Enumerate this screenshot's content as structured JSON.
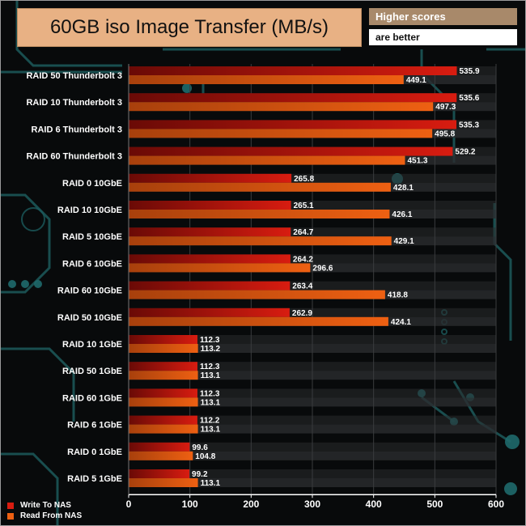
{
  "title": "60GB iso Image Transfer (MB/s)",
  "note": {
    "line1": "Higher scores",
    "line2": "are better"
  },
  "colors": {
    "write": "#d81c10",
    "read": "#ee6012",
    "track": "#2a2c2e"
  },
  "chart_data": {
    "type": "bar",
    "orientation": "horizontal",
    "title": "60GB iso Image Transfer (MB/s)",
    "xlim": [
      0,
      600
    ],
    "xticks": [
      0,
      100,
      200,
      300,
      400,
      500,
      600
    ],
    "grid": true,
    "legend_placement": "bottom-left",
    "categories": [
      "RAID 50 Thunderbolt 3",
      "RAID 10 Thunderbolt 3",
      "RAID 6 Thunderbolt 3",
      "RAID 60 Thunderbolt 3",
      "RAID 0 10GbE",
      "RAID 10 10GbE",
      "RAID 5 10GbE",
      "RAID 6 10GbE",
      "RAID 60 10GbE",
      "RAID 50 10GbE",
      "RAID 10 1GbE",
      "RAID 50 1GbE",
      "RAID 60 1GbE",
      "RAID 6 1GbE",
      "RAID 0 1GbE",
      "RAID 5 1GbE"
    ],
    "series": [
      {
        "name": "Write To NAS",
        "values": [
          535.9,
          535.6,
          535.3,
          529.2,
          265.8,
          265.1,
          264.7,
          264.2,
          263.4,
          262.9,
          112.3,
          112.3,
          112.3,
          112.2,
          99.6,
          99.2
        ]
      },
      {
        "name": "Read From NAS",
        "values": [
          449.1,
          497.3,
          495.8,
          451.3,
          428.1,
          426.1,
          429.1,
          296.6,
          418.8,
          424.1,
          113.2,
          113.1,
          113.1,
          113.1,
          104.8,
          113.1
        ]
      }
    ]
  }
}
